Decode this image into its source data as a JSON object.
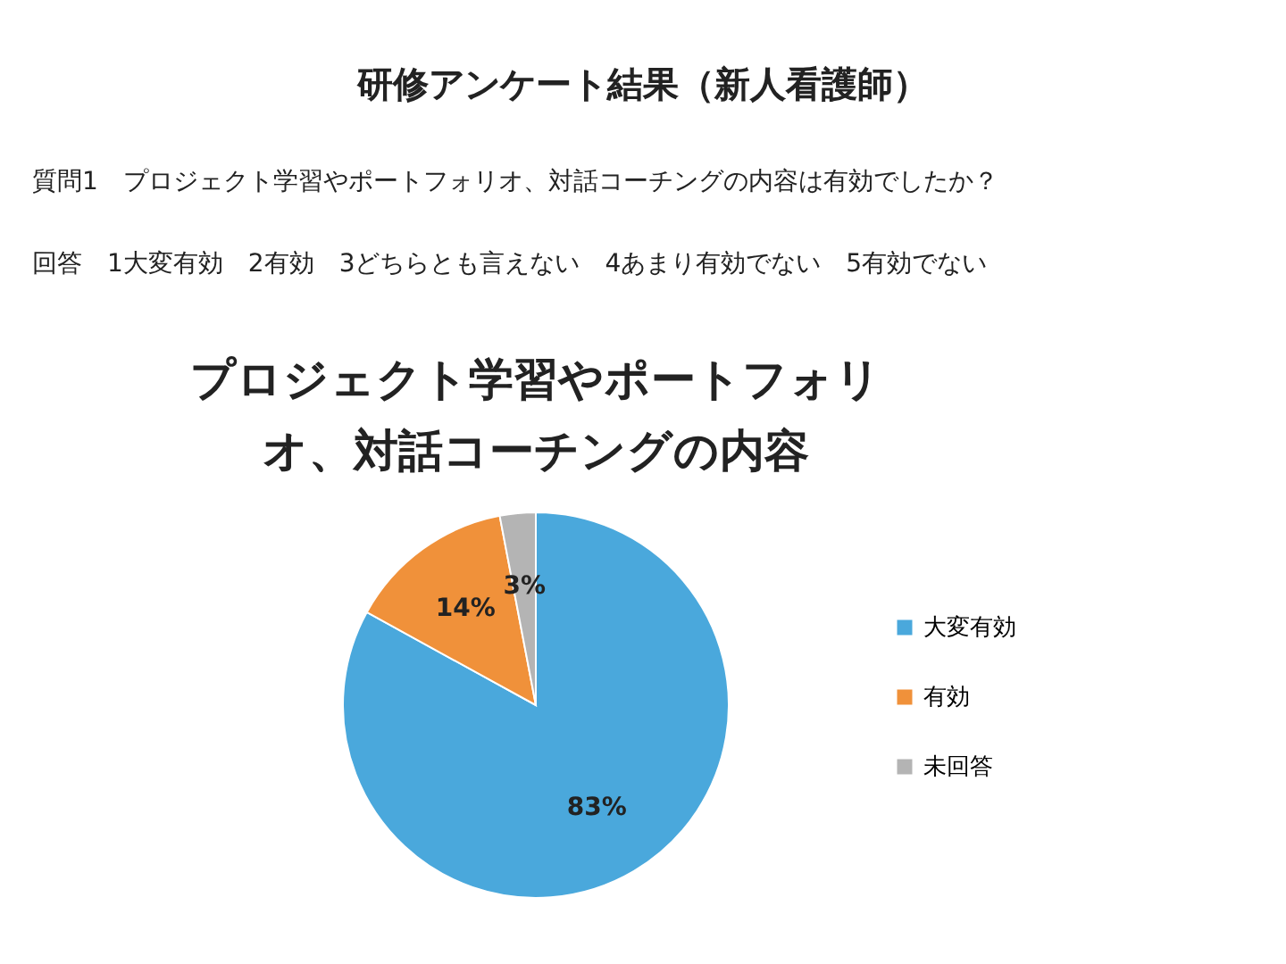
{
  "chart_data": {
    "type": "pie",
    "title": "研修アンケート結果（新人看護師）",
    "subtitle": "質問1　プロジェクト学習やポートフォリオ、対話コーチングの内容は有効でしたか？",
    "annotations": [
      "回答　1大変有効　2有効　3どちらとも言えない　4あまり有効でない　5有効でない",
      "プロジェクト学習やポートフォリ",
      "オ、対話コーチングの内容"
    ],
    "categories": [
      "大変有効",
      "有効",
      "未回答"
    ],
    "values": [
      83,
      14,
      3
    ],
    "colors": [
      "#4aa8dc",
      "#f0913a",
      "#b4b4b4"
    ],
    "value_labels": [
      "83%",
      "14%",
      "3%"
    ],
    "legend": "right"
  }
}
